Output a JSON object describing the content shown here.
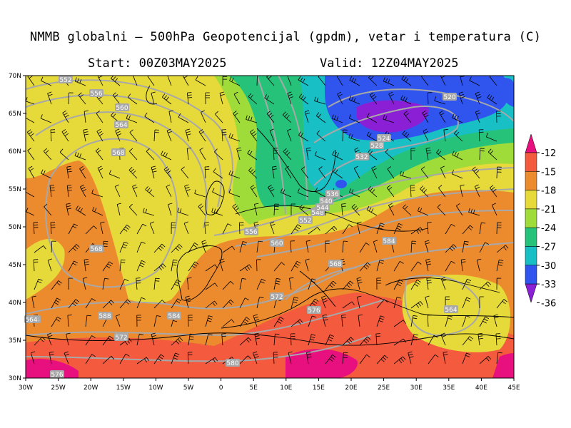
{
  "header": {
    "title": "NMMB globalni — 500hPa Geopotencijal (gpdm), vetar i temperatura (C)",
    "start": "Start: 00Z03MAY2025",
    "valid": "Valid: 12Z04MAY2025"
  },
  "map": {
    "lon_ticks": [
      "30W",
      "25W",
      "20W",
      "15W",
      "10W",
      "5W",
      "0",
      "5E",
      "10E",
      "15E",
      "20E",
      "25E",
      "30E",
      "35E",
      "40E",
      "45E"
    ],
    "lat_ticks": [
      "70N",
      "65N",
      "60N",
      "55N",
      "50N",
      "45N",
      "40N",
      "35N",
      "30N"
    ],
    "contour_labels": [
      "552",
      "556",
      "560",
      "564",
      "568",
      "568",
      "588",
      "572",
      "564",
      "576",
      "584",
      "580",
      "556",
      "560",
      "552",
      "548",
      "544",
      "540",
      "536",
      "532",
      "528",
      "524",
      "520",
      "568",
      "572",
      "576",
      "584",
      "564",
      "564"
    ]
  },
  "colorbar": {
    "labels": [
      "-12",
      "-15",
      "-18",
      "-21",
      "-24",
      "-27",
      "-30",
      "-33",
      "-36"
    ],
    "colors": {
      "c_m12": "#e8107e",
      "c_m15": "#f35a3e",
      "c_m18": "#ec8a2e",
      "c_m21": "#e6d93a",
      "c_m24": "#9fdc3a",
      "c_m27": "#27c27a",
      "c_m30": "#18bfc4",
      "c_m33": "#2f55ee",
      "c_m36": "#8a1fd6"
    }
  }
}
